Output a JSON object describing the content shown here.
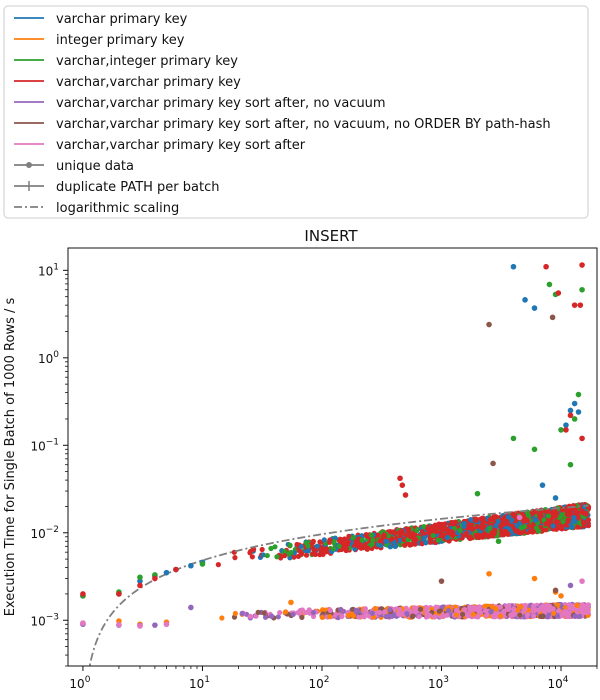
{
  "chart_data": {
    "type": "scatter",
    "title": "INSERT",
    "xlabel": "",
    "ylabel": "Execution Time for Single Batch of 1000 Rows / s",
    "x_scale": "log",
    "y_scale": "log",
    "xlim": [
      0.75,
      20000
    ],
    "ylim": [
      0.0003,
      18
    ],
    "grid": false,
    "legend_position": "above plot",
    "x_ticks": [
      {
        "value": 1,
        "base": "10",
        "exp": "0"
      },
      {
        "value": 10,
        "base": "10",
        "exp": "1"
      },
      {
        "value": 100,
        "base": "10",
        "exp": "2"
      },
      {
        "value": 1000,
        "base": "10",
        "exp": "3"
      },
      {
        "value": 10000,
        "base": "10",
        "exp": "4"
      }
    ],
    "y_ticks": [
      {
        "value": 0.001,
        "base": "10",
        "exp": "−3"
      },
      {
        "value": 0.01,
        "base": "10",
        "exp": "−2"
      },
      {
        "value": 0.1,
        "base": "10",
        "exp": "−1"
      },
      {
        "value": 1,
        "base": "10",
        "exp": "0"
      },
      {
        "value": 10,
        "base": "10",
        "exp": "1"
      }
    ],
    "legend": [
      {
        "label": "varchar primary key",
        "color": "#1f77b4",
        "style": "solid"
      },
      {
        "label": "integer primary key",
        "color": "#ff7f0e",
        "style": "solid"
      },
      {
        "label": "varchar,integer primary key",
        "color": "#2ca02c",
        "style": "solid"
      },
      {
        "label": "varchar,varchar primary key",
        "color": "#d62728",
        "style": "solid"
      },
      {
        "label": "varchar,varchar primary key sort after, no vacuum",
        "color": "#9467bd",
        "style": "solid"
      },
      {
        "label": "varchar,varchar primary key sort after, no vacuum, no ORDER BY path-hash",
        "color": "#8c564b",
        "style": "solid"
      },
      {
        "label": "varchar,varchar primary key sort after",
        "color": "#e377c2",
        "style": "solid"
      },
      {
        "label": "unique data",
        "color": "#7f7f7f",
        "style": "dot-marker"
      },
      {
        "label": "duplicate PATH per batch",
        "color": "#7f7f7f",
        "style": "plus-marker"
      },
      {
        "label": "logarithmic scaling",
        "color": "#7f7f7f",
        "style": "dashdot"
      }
    ],
    "series": [
      {
        "name": "varchar primary key",
        "color": "#1f77b4",
        "band": "high",
        "points": [
          [
            1,
            0.0019
          ],
          [
            2,
            0.002
          ],
          [
            3,
            0.0028
          ],
          [
            4,
            0.0032
          ],
          [
            5,
            0.0035
          ],
          [
            6,
            0.0038
          ],
          [
            8,
            0.0042
          ],
          [
            10,
            0.0046
          ],
          [
            4000,
            11.0
          ],
          [
            5000,
            4.6
          ],
          [
            6000,
            3.7
          ],
          [
            12000,
            0.25
          ],
          [
            11000,
            0.17
          ],
          [
            14000,
            0.24
          ],
          [
            13000,
            0.3
          ],
          [
            7000,
            0.035
          ],
          [
            9000,
            0.025
          ]
        ]
      },
      {
        "name": "integer primary key",
        "color": "#ff7f0e",
        "band": "low",
        "points": [
          [
            1,
            0.00092
          ],
          [
            2,
            0.00098
          ],
          [
            3,
            0.0009
          ],
          [
            5,
            0.00095
          ],
          [
            55,
            0.0016
          ],
          [
            2500,
            0.0034
          ],
          [
            6000,
            0.003
          ],
          [
            9000,
            0.0021
          ],
          [
            10000,
            0.0019
          ]
        ]
      },
      {
        "name": "varchar,integer primary key",
        "color": "#2ca02c",
        "band": "high",
        "points": [
          [
            1,
            0.0019
          ],
          [
            2,
            0.0021
          ],
          [
            3,
            0.0031
          ],
          [
            4,
            0.0033
          ],
          [
            10,
            0.0044
          ],
          [
            2000,
            0.028
          ],
          [
            8000,
            6.9
          ],
          [
            9000,
            5.3
          ],
          [
            15000,
            6.0
          ],
          [
            14000,
            0.38
          ],
          [
            13000,
            0.2
          ],
          [
            4000,
            0.12
          ],
          [
            6000,
            0.09
          ],
          [
            3000,
            0.008
          ],
          [
            10000,
            0.15
          ],
          [
            12000,
            0.06
          ]
        ]
      },
      {
        "name": "varchar,varchar primary key",
        "color": "#d62728",
        "band": "high",
        "points": [
          [
            1,
            0.002
          ],
          [
            2,
            0.002
          ],
          [
            3,
            0.0025
          ],
          [
            4,
            0.003
          ],
          [
            6,
            0.0038
          ],
          [
            450,
            0.042
          ],
          [
            470,
            0.035
          ],
          [
            500,
            0.027
          ],
          [
            7500,
            11.0
          ],
          [
            9500,
            5.5
          ],
          [
            15000,
            11.5
          ],
          [
            13000,
            4.0
          ],
          [
            14500,
            4.0
          ],
          [
            12000,
            0.22
          ],
          [
            11000,
            0.15
          ],
          [
            15000,
            0.12
          ]
        ]
      },
      {
        "name": "varchar,varchar primary key sort after, no vacuum",
        "color": "#9467bd",
        "band": "low",
        "points": [
          [
            1,
            0.0009
          ],
          [
            2,
            0.00088
          ],
          [
            3,
            0.00087
          ],
          [
            4,
            0.00088
          ],
          [
            8,
            0.0014
          ],
          [
            12000,
            0.0025
          ]
        ]
      },
      {
        "name": "varchar,varchar primary key sort after, no vacuum, no ORDER BY path-hash",
        "color": "#8c564b",
        "band": "low",
        "points": [
          [
            2500,
            2.4
          ],
          [
            2700,
            0.062
          ],
          [
            8500,
            2.9
          ],
          [
            1000,
            0.0028
          ],
          [
            9000,
            0.0022
          ]
        ]
      },
      {
        "name": "varchar,varchar primary key sort after",
        "color": "#e377c2",
        "band": "low",
        "points": [
          [
            1,
            0.00093
          ],
          [
            2,
            0.00089
          ],
          [
            3,
            0.00086
          ],
          [
            5,
            0.0009
          ],
          [
            4500,
            0.015
          ],
          [
            15000,
            0.0028
          ]
        ]
      }
    ],
    "reference_line": {
      "name": "logarithmic scaling",
      "color": "#7f7f7f",
      "style": "dashdot",
      "formula": "0.0048 * log10(x) + 0.0005",
      "x_range": [
        1.1,
        17000
      ]
    },
    "bands": [
      {
        "name": "high-band",
        "x_range": [
          10,
          17000
        ],
        "y_at_10": 0.0047,
        "y_at_17000": 0.016,
        "spread_factor": 1.35
      },
      {
        "name": "low-band",
        "x_range": [
          8,
          17000
        ],
        "y_at_10": 0.00115,
        "y_at_17000": 0.0013,
        "spread_factor": 1.18
      }
    ]
  }
}
